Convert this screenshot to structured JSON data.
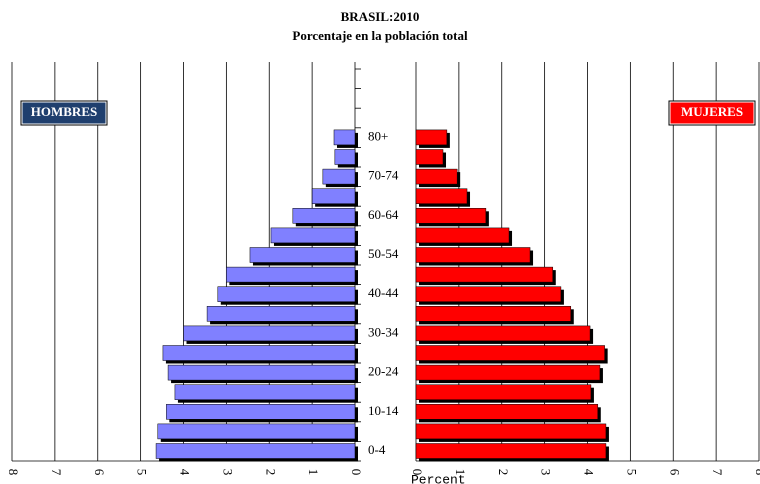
{
  "chart_data": {
    "type": "pyramid",
    "title": "BRASIL:2010",
    "subtitle": "Porcentaje en la población total",
    "categories": [
      "0-4",
      null,
      "10-14",
      null,
      "20-24",
      null,
      "30-34",
      null,
      "40-44",
      null,
      "50-54",
      null,
      "60-64",
      null,
      "70-74",
      null,
      "80+"
    ],
    "series": [
      {
        "name": "HOMBRES",
        "color": "#8080ff",
        "label_color": "#1f3f6e",
        "side": "left",
        "values": [
          4.64,
          4.6,
          4.4,
          4.2,
          4.36,
          4.48,
          4.0,
          3.45,
          3.2,
          3.0,
          2.45,
          1.96,
          1.45,
          1.0,
          0.75,
          0.47,
          0.49
        ]
      },
      {
        "name": "MUJERES",
        "color": "#ff0000",
        "label_color": "#ff0000",
        "side": "right",
        "values": [
          4.43,
          4.43,
          4.24,
          4.08,
          4.29,
          4.4,
          4.06,
          3.61,
          3.38,
          3.19,
          2.66,
          2.17,
          1.63,
          1.19,
          0.96,
          0.63,
          0.72
        ]
      }
    ],
    "xlabel": "Percent",
    "xlim": [
      0,
      8
    ],
    "xticks": [
      0,
      1,
      2,
      3,
      4,
      5,
      6,
      7,
      8
    ],
    "grid": true
  }
}
